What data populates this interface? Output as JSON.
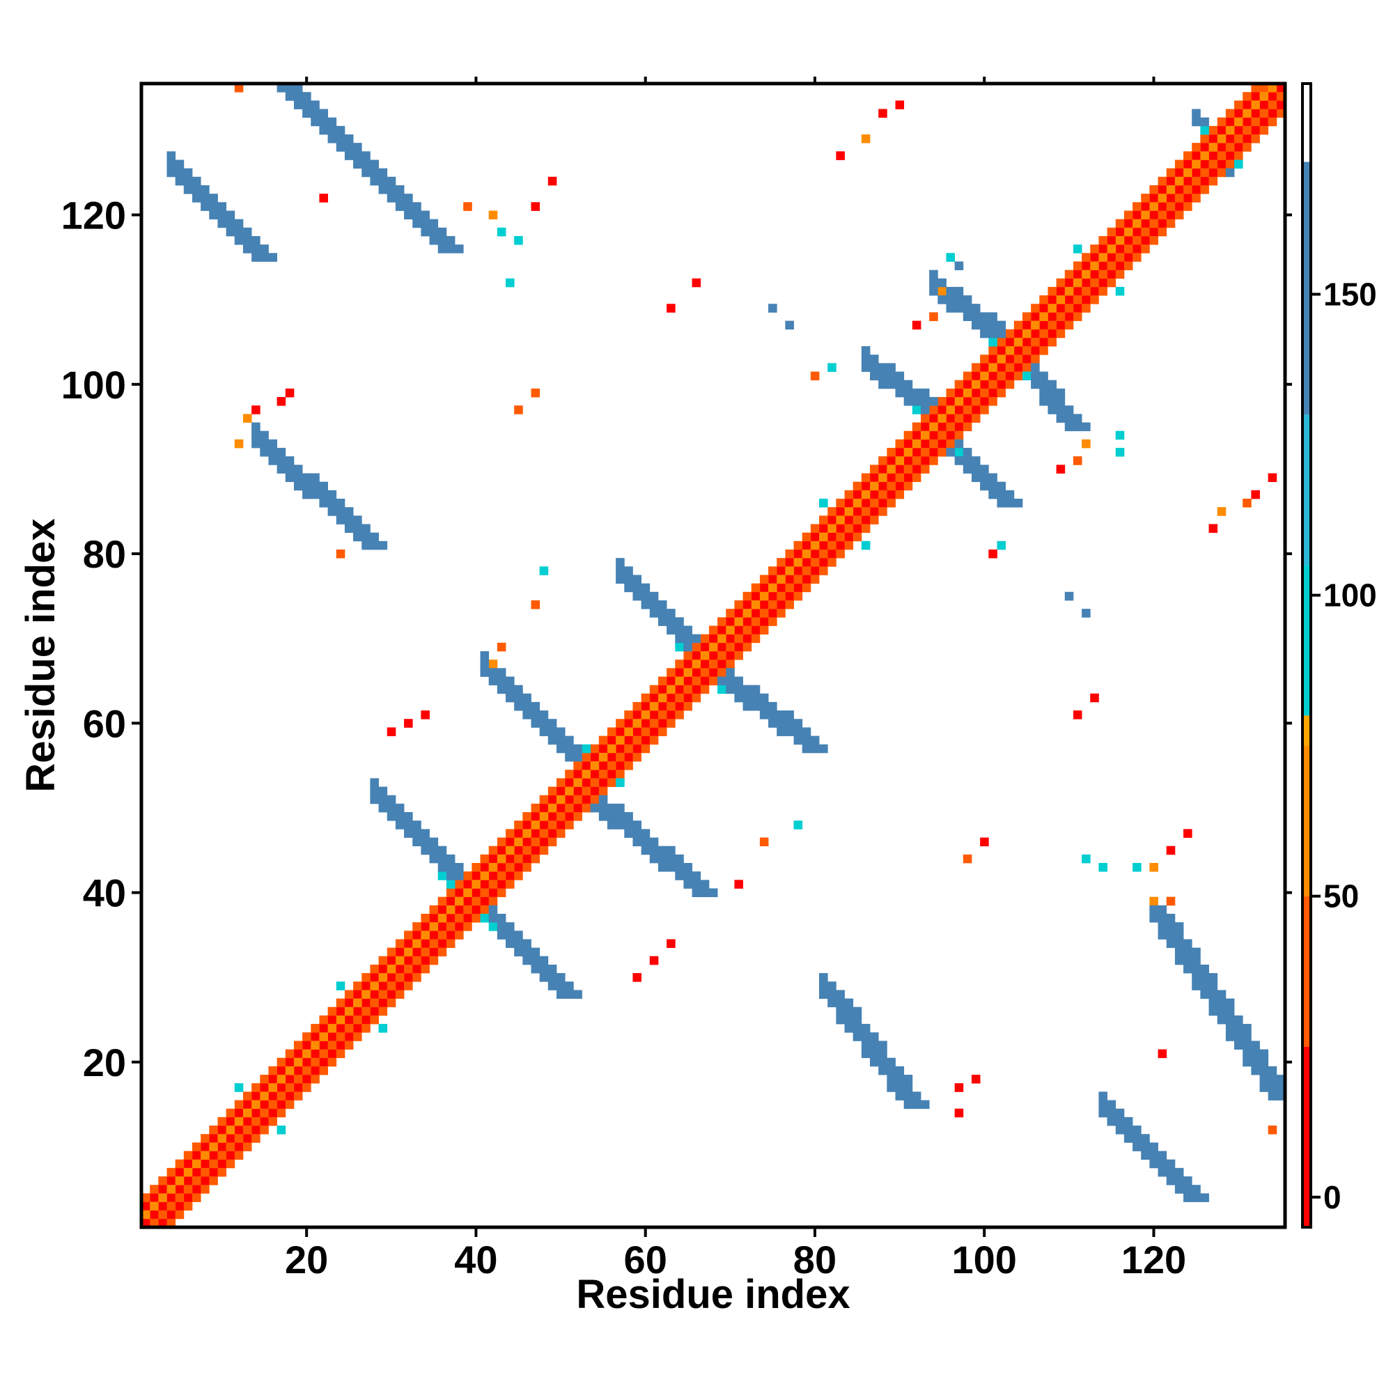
{
  "chart_data": {
    "type": "heatmap",
    "title": "",
    "xlabel": "Residue index",
    "ylabel": "Residue index",
    "xlim": [
      1,
      135
    ],
    "ylim": [
      1,
      135
    ],
    "x_ticks": [
      20,
      40,
      60,
      80,
      100,
      120
    ],
    "y_ticks": [
      20,
      40,
      60,
      80,
      100,
      120
    ],
    "colorbar": {
      "ticks": [
        0,
        50,
        100,
        150
      ],
      "range": [
        -5,
        185
      ],
      "bands": [
        {
          "from": -5,
          "to": 25,
          "color": "#ff0000"
        },
        {
          "from": 25,
          "to": 50,
          "color": "#ff5a00"
        },
        {
          "from": 50,
          "to": 75,
          "color": "#ff8c00"
        },
        {
          "from": 75,
          "to": 80,
          "color": "#ffa500"
        },
        {
          "from": 80,
          "to": 105,
          "color": "#00ced1"
        },
        {
          "from": 105,
          "to": 130,
          "color": "#2ab7d8"
        },
        {
          "from": 130,
          "to": 172,
          "color": "#4682b4"
        },
        {
          "from": 172,
          "to": 185,
          "color": "#ffffff"
        }
      ]
    },
    "grid": false,
    "note_colors": {
      "low": "#ff0000",
      "mid": "#ff8c00",
      "high": "#00ced1",
      "max": "#4682b4"
    },
    "segments": [
      {
        "x": [
          1,
          135
        ],
        "y": [
          1,
          135
        ],
        "value": 20,
        "offset": 0
      },
      {
        "x": [
          1,
          133
        ],
        "y": [
          3,
          135
        ],
        "value": 5,
        "offset": 1
      },
      {
        "x": [
          3,
          135
        ],
        "y": [
          1,
          133
        ],
        "value": 5,
        "offset": 1
      },
      {
        "x": [
          1,
          134
        ],
        "y": [
          2,
          135
        ],
        "value": 60,
        "offset": 0
      },
      {
        "x": [
          2,
          135
        ],
        "y": [
          1,
          134
        ],
        "value": 45,
        "offset": 0
      },
      {
        "x": [
          1,
          132
        ],
        "y": [
          4,
          135
        ],
        "value": 40,
        "offset": 0
      },
      {
        "x": [
          4,
          135
        ],
        "y": [
          1,
          132
        ],
        "value": 40,
        "offset": 0
      },
      {
        "x": [
          12,
          17
        ],
        "y": [
          17,
          12
        ],
        "value": 95
      },
      {
        "x": [
          24,
          29
        ],
        "y": [
          29,
          24
        ],
        "value": 95
      },
      {
        "x": [
          36,
          42
        ],
        "y": [
          42,
          36
        ],
        "value": 95
      },
      {
        "x": [
          53,
          57
        ],
        "y": [
          57,
          53
        ],
        "value": 95
      },
      {
        "x": [
          64,
          69
        ],
        "y": [
          69,
          64
        ],
        "value": 95
      },
      {
        "x": [
          81,
          86
        ],
        "y": [
          86,
          81
        ],
        "value": 95
      },
      {
        "x": [
          92,
          97
        ],
        "y": [
          97,
          92
        ],
        "value": 95
      },
      {
        "x": [
          101,
          105
        ],
        "y": [
          105,
          101
        ],
        "value": 95
      },
      {
        "x": [
          111,
          116
        ],
        "y": [
          116,
          111
        ],
        "value": 95
      },
      {
        "x": [
          126,
          130
        ],
        "y": [
          130,
          126
        ],
        "value": 95
      },
      {
        "x": [
          28,
          38
        ],
        "y": [
          51,
          41
        ],
        "value": 150,
        "width": 3
      },
      {
        "x": [
          40,
          50
        ],
        "y": [
          38,
          28
        ],
        "value": 150,
        "width": 3
      },
      {
        "x": [
          41,
          51
        ],
        "y": [
          66,
          56
        ],
        "value": 150,
        "width": 3
      },
      {
        "x": [
          53,
          66
        ],
        "y": [
          51,
          40
        ],
        "value": 150,
        "width": 3
      },
      {
        "x": [
          57,
          67
        ],
        "y": [
          77,
          67
        ],
        "value": 150,
        "width": 3
      },
      {
        "x": [
          67,
          79
        ],
        "y": [
          66,
          57
        ],
        "value": 150,
        "width": 3
      },
      {
        "x": [
          86,
          95
        ],
        "y": [
          102,
          95
        ],
        "value": 150,
        "width": 3
      },
      {
        "x": [
          94,
          102
        ],
        "y": [
          94,
          86
        ],
        "value": 150,
        "width": 3
      },
      {
        "x": [
          94,
          103
        ],
        "y": [
          111,
          104
        ],
        "value": 150,
        "width": 3
      },
      {
        "x": [
          103,
          110
        ],
        "y": [
          103,
          95
        ],
        "value": 150,
        "width": 3
      },
      {
        "x": [
          14,
          27
        ],
        "y": [
          93,
          81
        ],
        "value": 150,
        "width": 3
      },
      {
        "x": [
          17,
          36
        ],
        "y": [
          135,
          116
        ],
        "value": 150,
        "width": 3
      },
      {
        "x": [
          4,
          14
        ],
        "y": [
          125,
          115
        ],
        "value": 150,
        "width": 3
      },
      {
        "x": [
          81,
          91
        ],
        "y": [
          28,
          15
        ],
        "value": 150,
        "width": 3
      },
      {
        "x": [
          120,
          134
        ],
        "y": [
          37,
          16
        ],
        "value": 150,
        "width": 3
      },
      {
        "x": [
          114,
          124
        ],
        "y": [
          14,
          4
        ],
        "value": 150,
        "width": 3
      },
      {
        "x": [
          125,
          128
        ],
        "y": [
          131,
          125
        ],
        "value": 150,
        "width": 2
      }
    ],
    "points": [
      {
        "x": 12,
        "y": 135,
        "value": 40
      },
      {
        "x": 13,
        "y": 96,
        "value": 70
      },
      {
        "x": 14,
        "y": 97,
        "value": 10
      },
      {
        "x": 17,
        "y": 98,
        "value": 10
      },
      {
        "x": 18,
        "y": 99,
        "value": 10
      },
      {
        "x": 12,
        "y": 93,
        "value": 70
      },
      {
        "x": 22,
        "y": 122,
        "value": 10
      },
      {
        "x": 24,
        "y": 80,
        "value": 40
      },
      {
        "x": 30,
        "y": 59,
        "value": 10
      },
      {
        "x": 32,
        "y": 60,
        "value": 10
      },
      {
        "x": 34,
        "y": 61,
        "value": 10
      },
      {
        "x": 45,
        "y": 97,
        "value": 40
      },
      {
        "x": 47,
        "y": 99,
        "value": 40
      },
      {
        "x": 44,
        "y": 112,
        "value": 95
      },
      {
        "x": 45,
        "y": 117,
        "value": 95
      },
      {
        "x": 43,
        "y": 118,
        "value": 95
      },
      {
        "x": 42,
        "y": 120,
        "value": 70
      },
      {
        "x": 47,
        "y": 121,
        "value": 10
      },
      {
        "x": 49,
        "y": 124,
        "value": 10
      },
      {
        "x": 39,
        "y": 121,
        "value": 40
      },
      {
        "x": 47,
        "y": 74,
        "value": 40
      },
      {
        "x": 48,
        "y": 78,
        "value": 95
      },
      {
        "x": 43,
        "y": 69,
        "value": 40
      },
      {
        "x": 42,
        "y": 67,
        "value": 70
      },
      {
        "x": 59,
        "y": 30,
        "value": 10
      },
      {
        "x": 61,
        "y": 32,
        "value": 10
      },
      {
        "x": 63,
        "y": 34,
        "value": 10
      },
      {
        "x": 63,
        "y": 109,
        "value": 10
      },
      {
        "x": 66,
        "y": 112,
        "value": 10
      },
      {
        "x": 71,
        "y": 41,
        "value": 10
      },
      {
        "x": 74,
        "y": 46,
        "value": 40
      },
      {
        "x": 78,
        "y": 48,
        "value": 95
      },
      {
        "x": 75,
        "y": 109,
        "value": 150
      },
      {
        "x": 77,
        "y": 107,
        "value": 150
      },
      {
        "x": 80,
        "y": 101,
        "value": 40
      },
      {
        "x": 82,
        "y": 102,
        "value": 95
      },
      {
        "x": 83,
        "y": 127,
        "value": 10
      },
      {
        "x": 86,
        "y": 129,
        "value": 70
      },
      {
        "x": 88,
        "y": 132,
        "value": 10
      },
      {
        "x": 90,
        "y": 133,
        "value": 10
      },
      {
        "x": 92,
        "y": 107,
        "value": 10
      },
      {
        "x": 94,
        "y": 108,
        "value": 40
      },
      {
        "x": 95,
        "y": 111,
        "value": 70
      },
      {
        "x": 96,
        "y": 115,
        "value": 95
      },
      {
        "x": 97,
        "y": 114,
        "value": 150
      },
      {
        "x": 97,
        "y": 17,
        "value": 10
      },
      {
        "x": 99,
        "y": 18,
        "value": 10
      },
      {
        "x": 97,
        "y": 14,
        "value": 10
      },
      {
        "x": 98,
        "y": 44,
        "value": 40
      },
      {
        "x": 100,
        "y": 46,
        "value": 10
      },
      {
        "x": 101,
        "y": 80,
        "value": 10
      },
      {
        "x": 102,
        "y": 81,
        "value": 95
      },
      {
        "x": 109,
        "y": 90,
        "value": 10
      },
      {
        "x": 111,
        "y": 91,
        "value": 40
      },
      {
        "x": 112,
        "y": 93,
        "value": 70
      },
      {
        "x": 116,
        "y": 94,
        "value": 95
      },
      {
        "x": 116,
        "y": 92,
        "value": 95
      },
      {
        "x": 110,
        "y": 75,
        "value": 150
      },
      {
        "x": 112,
        "y": 73,
        "value": 150
      },
      {
        "x": 111,
        "y": 61,
        "value": 10
      },
      {
        "x": 113,
        "y": 63,
        "value": 10
      },
      {
        "x": 112,
        "y": 44,
        "value": 95
      },
      {
        "x": 114,
        "y": 43,
        "value": 95
      },
      {
        "x": 118,
        "y": 43,
        "value": 95
      },
      {
        "x": 120,
        "y": 43,
        "value": 70
      },
      {
        "x": 122,
        "y": 45,
        "value": 10
      },
      {
        "x": 124,
        "y": 47,
        "value": 10
      },
      {
        "x": 122,
        "y": 39,
        "value": 40
      },
      {
        "x": 120,
        "y": 39,
        "value": 70
      },
      {
        "x": 121,
        "y": 21,
        "value": 10
      },
      {
        "x": 128,
        "y": 85,
        "value": 70
      },
      {
        "x": 131,
        "y": 86,
        "value": 40
      },
      {
        "x": 134,
        "y": 89,
        "value": 10
      },
      {
        "x": 132,
        "y": 87,
        "value": 10
      },
      {
        "x": 127,
        "y": 83,
        "value": 10
      },
      {
        "x": 134,
        "y": 12,
        "value": 40
      },
      {
        "x": 133,
        "y": 135,
        "value": 40
      },
      {
        "x": 135,
        "y": 132,
        "value": 40
      }
    ]
  }
}
